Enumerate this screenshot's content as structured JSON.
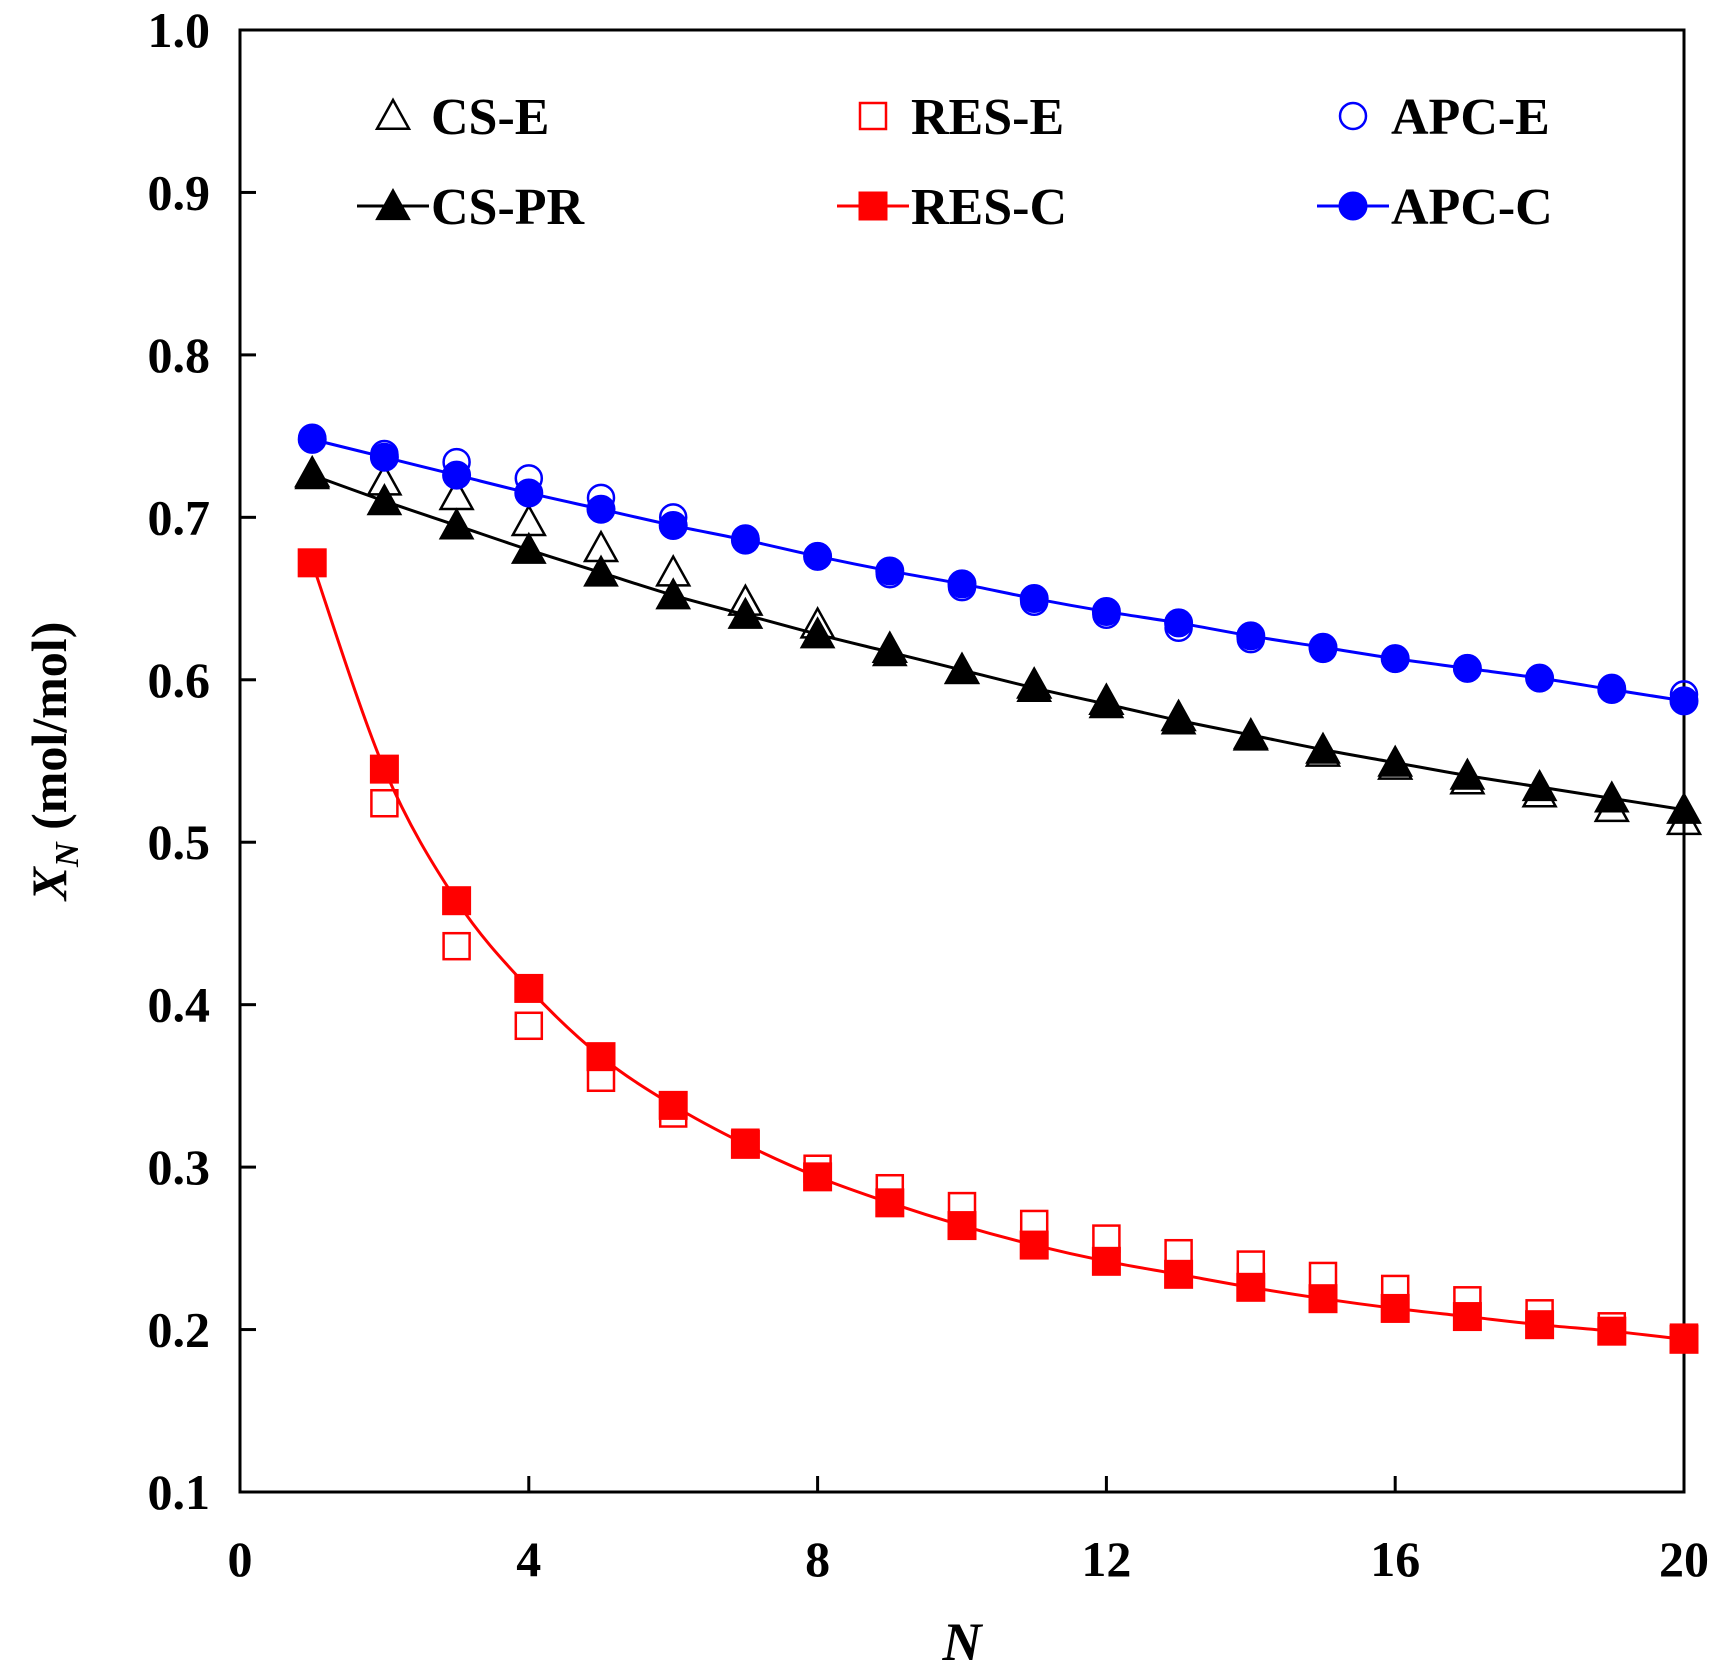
{
  "chart_data": {
    "type": "line",
    "title": "",
    "xlabel": "N",
    "ylabel_main": "X",
    "ylabel_sub": "N",
    "ylabel_unit": " (mol/mol)",
    "xlim": [
      0,
      20
    ],
    "ylim": [
      0.1,
      1.0
    ],
    "xticks": [
      0,
      4,
      8,
      12,
      16,
      20
    ],
    "xtick_labels": [
      "0",
      "4",
      "8",
      "12",
      "16",
      "20"
    ],
    "yticks": [
      0.1,
      0.2,
      0.3,
      0.4,
      0.5,
      0.6,
      0.7,
      0.8,
      0.9,
      1.0
    ],
    "ytick_labels": [
      "0.1",
      "0.2",
      "0.3",
      "0.4",
      "0.5",
      "0.6",
      "0.7",
      "0.8",
      "0.9",
      "1.0"
    ],
    "grid": false,
    "legend_position": "top",
    "x": [
      1,
      2,
      3,
      4,
      5,
      6,
      7,
      8,
      9,
      10,
      11,
      12,
      13,
      14,
      15,
      16,
      17,
      18,
      19,
      20
    ],
    "series": [
      {
        "name": "CS-E",
        "marker": "triangle",
        "filled": false,
        "line": false,
        "color": "#000000",
        "values": [
          0.727,
          0.722,
          0.713,
          0.697,
          0.681,
          0.666,
          0.648,
          0.634,
          0.619,
          0.606,
          0.597,
          0.587,
          0.577,
          0.565,
          0.555,
          0.547,
          0.538,
          0.53,
          0.521,
          0.513
        ]
      },
      {
        "name": "RES-E",
        "marker": "square",
        "filled": false,
        "line": false,
        "color": "#ff0000",
        "values": [
          0.672,
          0.524,
          0.436,
          0.387,
          0.355,
          0.333,
          0.315,
          0.299,
          0.287,
          0.276,
          0.265,
          0.256,
          0.247,
          0.24,
          0.233,
          0.225,
          0.218,
          0.21,
          0.202,
          0.195
        ]
      },
      {
        "name": "APC-E",
        "marker": "circle",
        "filled": false,
        "line": false,
        "color": "#0000ff",
        "values": [
          0.749,
          0.739,
          0.734,
          0.724,
          0.712,
          0.7,
          0.687,
          0.676,
          0.665,
          0.657,
          0.648,
          0.64,
          0.632,
          0.625,
          0.619,
          0.613,
          0.607,
          0.601,
          0.595,
          0.591
        ]
      },
      {
        "name": "CS-PR",
        "marker": "triangle",
        "filled": true,
        "line": true,
        "color": "#000000",
        "values": [
          0.726,
          0.71,
          0.695,
          0.68,
          0.666,
          0.652,
          0.64,
          0.628,
          0.617,
          0.606,
          0.595,
          0.585,
          0.575,
          0.566,
          0.557,
          0.549,
          0.541,
          0.534,
          0.527,
          0.52
        ]
      },
      {
        "name": "RES-C",
        "marker": "square",
        "filled": true,
        "line": true,
        "color": "#ff0000",
        "values": [
          0.672,
          0.545,
          0.464,
          0.41,
          0.368,
          0.338,
          0.314,
          0.294,
          0.278,
          0.264,
          0.252,
          0.242,
          0.234,
          0.226,
          0.219,
          0.213,
          0.208,
          0.203,
          0.199,
          0.194
        ]
      },
      {
        "name": "APC-C",
        "marker": "circle",
        "filled": true,
        "line": true,
        "color": "#0000ff",
        "values": [
          0.748,
          0.737,
          0.726,
          0.715,
          0.705,
          0.695,
          0.686,
          0.676,
          0.667,
          0.659,
          0.65,
          0.642,
          0.635,
          0.627,
          0.62,
          0.613,
          0.607,
          0.601,
          0.594,
          0.587
        ]
      }
    ]
  }
}
